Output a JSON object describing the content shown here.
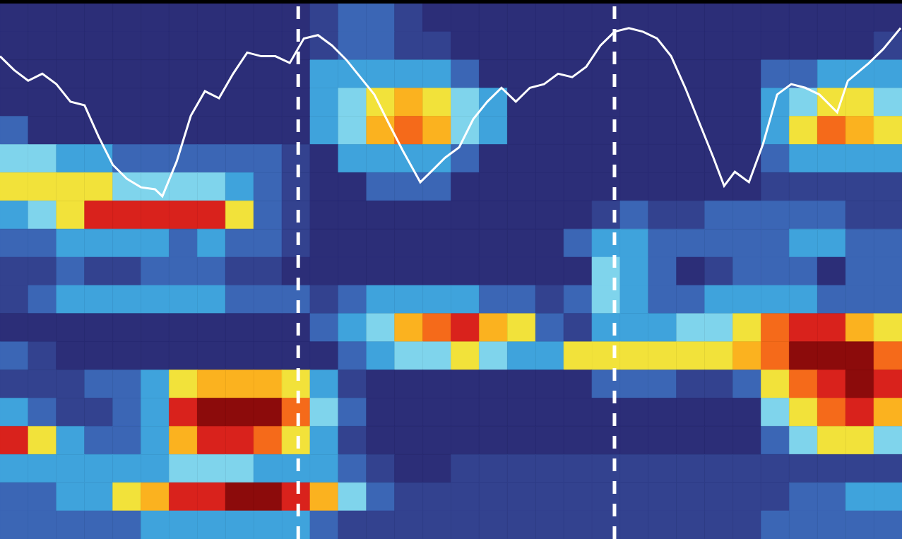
{
  "chart_data": {
    "type": "heatmap",
    "xlim": [
      0,
      32
    ],
    "ylim": [
      0,
      19
    ],
    "zlim": [
      0,
      9
    ],
    "tick_labels": false,
    "grid": false,
    "cells": [
      [
        0,
        0,
        0,
        0,
        0,
        0,
        0,
        0,
        0,
        0,
        0,
        1,
        2,
        2,
        1,
        0,
        0,
        0,
        0,
        0,
        0,
        0,
        0,
        0,
        0,
        0,
        0,
        0,
        0,
        0,
        0,
        0
      ],
      [
        0,
        0,
        0,
        0,
        0,
        0,
        0,
        0,
        0,
        0,
        0,
        1,
        2,
        2,
        1,
        1,
        0,
        0,
        0,
        0,
        0,
        0,
        0,
        0,
        0,
        0,
        0,
        0,
        0,
        0,
        0,
        1
      ],
      [
        0,
        0,
        0,
        0,
        0,
        0,
        0,
        0,
        0,
        0,
        0,
        3,
        3,
        3,
        3,
        3,
        2,
        0,
        0,
        0,
        0,
        0,
        0,
        0,
        0,
        0,
        0,
        2,
        2,
        3,
        3,
        3
      ],
      [
        0,
        0,
        0,
        0,
        0,
        0,
        0,
        0,
        0,
        0,
        0,
        3,
        4,
        5,
        6,
        5,
        4,
        3,
        0,
        0,
        0,
        0,
        0,
        0,
        0,
        0,
        0,
        3,
        4,
        5,
        5,
        4
      ],
      [
        2,
        0,
        0,
        0,
        0,
        0,
        0,
        0,
        0,
        0,
        0,
        3,
        4,
        6,
        7,
        6,
        4,
        3,
        0,
        0,
        0,
        0,
        0,
        0,
        0,
        0,
        0,
        3,
        5,
        7,
        6,
        5
      ],
      [
        4,
        4,
        3,
        3,
        2,
        2,
        2,
        2,
        2,
        2,
        1,
        0,
        3,
        3,
        3,
        3,
        2,
        0,
        0,
        0,
        0,
        0,
        0,
        0,
        0,
        0,
        0,
        2,
        3,
        3,
        3,
        3
      ],
      [
        5,
        5,
        5,
        5,
        4,
        4,
        4,
        4,
        3,
        2,
        1,
        0,
        0,
        2,
        2,
        2,
        0,
        0,
        0,
        0,
        0,
        0,
        0,
        0,
        0,
        0,
        0,
        1,
        1,
        1,
        1,
        1
      ],
      [
        3,
        4,
        5,
        8,
        8,
        8,
        8,
        8,
        5,
        2,
        1,
        0,
        0,
        0,
        0,
        0,
        0,
        0,
        0,
        0,
        0,
        1,
        2,
        1,
        1,
        2,
        2,
        2,
        2,
        2,
        1,
        1
      ],
      [
        2,
        2,
        3,
        3,
        3,
        3,
        2,
        3,
        2,
        2,
        1,
        0,
        0,
        0,
        0,
        0,
        0,
        0,
        0,
        0,
        2,
        3,
        3,
        2,
        2,
        2,
        2,
        2,
        3,
        3,
        2,
        2
      ],
      [
        1,
        1,
        2,
        1,
        1,
        2,
        2,
        2,
        1,
        1,
        0,
        0,
        0,
        0,
        0,
        0,
        0,
        0,
        0,
        0,
        0,
        4,
        3,
        2,
        0,
        1,
        2,
        2,
        2,
        0,
        2,
        2
      ],
      [
        1,
        2,
        3,
        3,
        3,
        3,
        3,
        3,
        2,
        2,
        2,
        1,
        2,
        3,
        3,
        3,
        3,
        2,
        2,
        1,
        2,
        4,
        3,
        2,
        2,
        3,
        3,
        3,
        3,
        2,
        2,
        2
      ],
      [
        0,
        0,
        0,
        0,
        0,
        0,
        0,
        0,
        0,
        0,
        0,
        2,
        3,
        4,
        6,
        7,
        8,
        6,
        5,
        2,
        1,
        3,
        3,
        3,
        4,
        4,
        5,
        7,
        8,
        8,
        6,
        5
      ],
      [
        2,
        1,
        0,
        0,
        0,
        0,
        0,
        0,
        0,
        0,
        0,
        0,
        2,
        3,
        4,
        4,
        5,
        4,
        3,
        3,
        5,
        5,
        5,
        5,
        5,
        5,
        6,
        7,
        9,
        9,
        9,
        7
      ],
      [
        1,
        1,
        1,
        2,
        2,
        3,
        5,
        6,
        6,
        6,
        5,
        3,
        1,
        0,
        0,
        0,
        0,
        0,
        0,
        0,
        0,
        2,
        2,
        2,
        1,
        1,
        2,
        5,
        7,
        8,
        9,
        8
      ],
      [
        3,
        2,
        1,
        1,
        2,
        3,
        8,
        9,
        9,
        9,
        7,
        4,
        2,
        0,
        0,
        0,
        0,
        0,
        0,
        0,
        0,
        0,
        0,
        0,
        0,
        0,
        0,
        4,
        5,
        7,
        8,
        6
      ],
      [
        8,
        5,
        3,
        2,
        2,
        3,
        6,
        8,
        8,
        7,
        5,
        3,
        1,
        0,
        0,
        0,
        0,
        0,
        0,
        0,
        0,
        0,
        0,
        0,
        0,
        0,
        0,
        2,
        4,
        5,
        5,
        4
      ],
      [
        3,
        3,
        3,
        3,
        3,
        3,
        4,
        4,
        4,
        3,
        3,
        3,
        2,
        1,
        0,
        0,
        1,
        1,
        1,
        1,
        1,
        1,
        1,
        1,
        1,
        1,
        1,
        1,
        1,
        1,
        1,
        1
      ],
      [
        2,
        2,
        3,
        3,
        5,
        6,
        8,
        8,
        9,
        9,
        8,
        6,
        4,
        2,
        1,
        1,
        1,
        1,
        1,
        1,
        1,
        1,
        1,
        1,
        1,
        1,
        1,
        1,
        2,
        2,
        3,
        3
      ],
      [
        2,
        2,
        2,
        2,
        2,
        3,
        3,
        3,
        3,
        3,
        3,
        2,
        1,
        1,
        1,
        1,
        1,
        1,
        1,
        1,
        1,
        1,
        1,
        1,
        1,
        1,
        1,
        2,
        2,
        2,
        2,
        2
      ]
    ],
    "line": {
      "color": "#ffffff",
      "x": [
        0,
        0.5,
        1.0,
        1.5,
        2.0,
        2.5,
        3.0,
        3.5,
        4.0,
        4.5,
        5.0,
        5.5,
        5.76,
        6.27,
        6.77,
        7.27,
        7.77,
        8.27,
        8.77,
        9.27,
        9.77,
        10.28,
        10.78,
        11.28,
        11.78,
        12.28,
        12.78,
        13.28,
        13.78,
        14.29,
        14.91,
        15.29,
        15.79,
        16.29,
        16.79,
        17.29,
        17.79,
        18.3,
        18.8,
        19.3,
        19.8,
        20.3,
        20.8,
        21.3,
        21.8,
        22.31,
        22.81,
        23.31,
        23.81,
        24.31,
        24.81,
        25.31,
        25.69,
        26.07,
        26.57,
        27.07,
        27.57,
        28.07,
        28.57,
        29.07,
        29.7,
        30.08,
        30.83,
        31.33,
        31.95
      ],
      "values": [
        17.13,
        16.64,
        16.26,
        16.51,
        16.14,
        15.52,
        15.39,
        14.27,
        13.28,
        12.78,
        12.48,
        12.41,
        12.16,
        13.4,
        15.02,
        15.89,
        15.64,
        16.51,
        17.26,
        17.13,
        17.13,
        16.89,
        17.76,
        17.88,
        17.51,
        17.01,
        16.39,
        15.77,
        14.77,
        13.78,
        12.66,
        13.03,
        13.53,
        13.9,
        14.9,
        15.52,
        16.01,
        15.52,
        16.01,
        16.14,
        16.51,
        16.39,
        16.76,
        17.51,
        18.0,
        18.13,
        18.0,
        17.76,
        17.13,
        16.01,
        14.77,
        13.53,
        12.53,
        13.03,
        12.66,
        14.02,
        15.77,
        16.14,
        16.01,
        15.77,
        15.14,
        16.26,
        16.89,
        17.38,
        18.13
      ]
    },
    "vlines": {
      "x": [
        10.58,
        21.8
      ],
      "color": "#ffffff",
      "line_style": "dashed"
    }
  }
}
